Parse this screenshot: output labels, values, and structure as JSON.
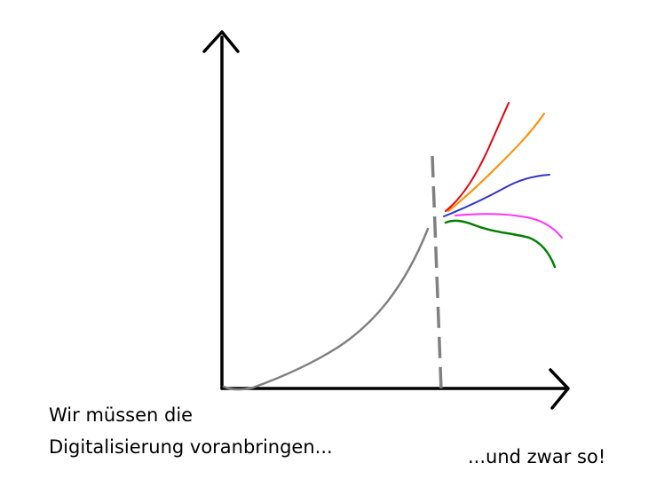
{
  "captions": {
    "left_line_1": "Wir müssen die",
    "left_line_2": "Digitalisierung voranbringen...",
    "right": "...und zwar so!"
  },
  "colors": {
    "axes": "#000000",
    "history_curve": "#808080",
    "divider_dashed": "#808080",
    "scenarios": [
      "#e8000b",
      "#ff8c00",
      "#3333cc",
      "#ff33ff",
      "#008000"
    ]
  }
}
